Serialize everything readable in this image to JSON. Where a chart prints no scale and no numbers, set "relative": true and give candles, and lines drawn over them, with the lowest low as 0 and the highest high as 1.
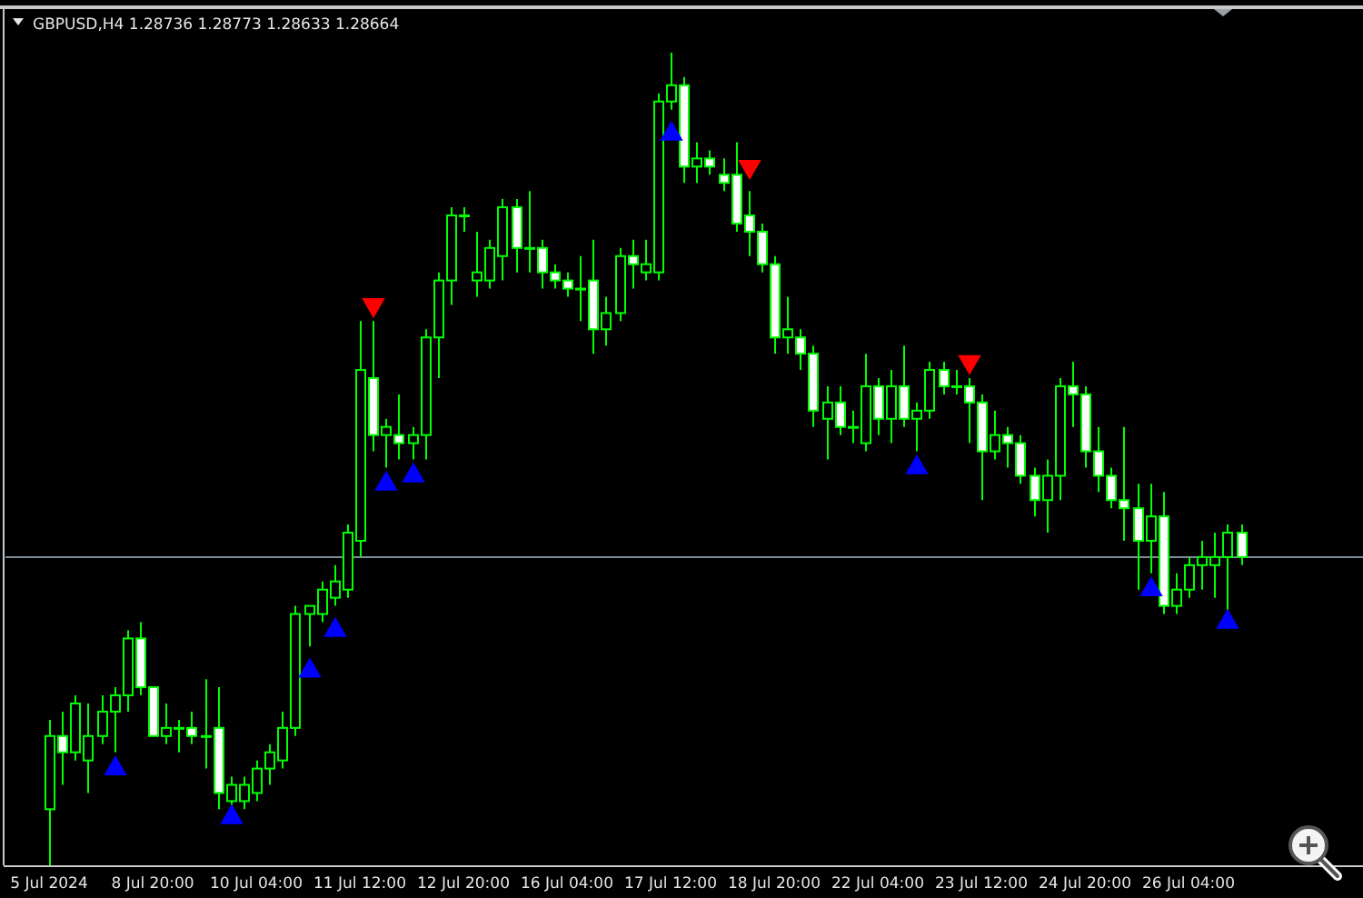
{
  "chart_data": {
    "type": "candlestick",
    "title": "GBPUSD,H4  1.28736 1.28773 1.28633 1.28664",
    "relative": true,
    "color": "#00ff00",
    "tick_labels": "x",
    "grid": false,
    "legend": false,
    "categories": [
      "5 Jul 2024",
      null,
      null,
      null,
      null,
      null,
      null,
      null,
      "8 Jul 20:00",
      null,
      null,
      null,
      null,
      null,
      null,
      null,
      "10 Jul 04:00",
      null,
      null,
      null,
      null,
      null,
      null,
      null,
      "11 Jul 12:00",
      null,
      null,
      null,
      null,
      null,
      null,
      null,
      "12 Jul 20:00",
      null,
      null,
      null,
      null,
      null,
      null,
      null,
      "16 Jul 04:00",
      null,
      null,
      null,
      null,
      null,
      null,
      null,
      "17 Jul 12:00",
      null,
      null,
      null,
      null,
      null,
      null,
      null,
      "18 Jul 20:00",
      null,
      null,
      null,
      null,
      null,
      null,
      null,
      "22 Jul 04:00",
      null,
      null,
      null,
      null,
      null,
      null,
      null,
      "23 Jul 12:00",
      null,
      null,
      null,
      null,
      null,
      null,
      null,
      "24 Jul 20:00",
      null,
      null,
      null,
      null,
      null,
      null,
      null,
      "26 Jul 04:00",
      null,
      null,
      null,
      null
    ],
    "ohlc": [
      [
        0.07,
        0.18,
        0,
        0.16
      ],
      [
        0.16,
        0.19,
        0.1,
        0.14
      ],
      [
        0.14,
        0.21,
        0.13,
        0.2
      ],
      [
        0.13,
        0.2,
        0.09,
        0.16
      ],
      [
        0.16,
        0.21,
        0.15,
        0.19
      ],
      [
        0.19,
        0.22,
        0.14,
        0.21
      ],
      [
        0.21,
        0.29,
        0.19,
        0.28
      ],
      [
        0.28,
        0.3,
        0.21,
        0.22
      ],
      [
        0.22,
        0.22,
        0.16,
        0.16
      ],
      [
        0.16,
        0.2,
        0.15,
        0.17
      ],
      [
        0.17,
        0.18,
        0.14,
        0.17
      ],
      [
        0.17,
        0.19,
        0.15,
        0.16
      ],
      [
        0.16,
        0.23,
        0.12,
        0.16
      ],
      [
        0.17,
        0.22,
        0.07,
        0.09
      ],
      [
        0.08,
        0.11,
        0.07,
        0.1
      ],
      [
        0.08,
        0.11,
        0.07,
        0.1
      ],
      [
        0.09,
        0.13,
        0.08,
        0.12
      ],
      [
        0.12,
        0.15,
        0.1,
        0.14
      ],
      [
        0.13,
        0.19,
        0.12,
        0.17
      ],
      [
        0.17,
        0.32,
        0.16,
        0.31
      ],
      [
        0.31,
        0.32,
        0.27,
        0.32
      ],
      [
        0.31,
        0.35,
        0.3,
        0.34
      ],
      [
        0.33,
        0.37,
        0.32,
        0.35
      ],
      [
        0.34,
        0.42,
        0.33,
        0.41
      ],
      [
        0.4,
        0.67,
        0.38,
        0.61
      ],
      [
        0.6,
        0.67,
        0.51,
        0.53
      ],
      [
        0.53,
        0.55,
        0.49,
        0.54
      ],
      [
        0.53,
        0.58,
        0.5,
        0.52
      ],
      [
        0.52,
        0.54,
        0.5,
        0.53
      ],
      [
        0.53,
        0.66,
        0.5,
        0.65
      ],
      [
        0.65,
        0.73,
        0.6,
        0.72
      ],
      [
        0.72,
        0.81,
        0.69,
        0.8
      ],
      [
        0.8,
        0.81,
        0.78,
        0.8
      ],
      [
        0.72,
        0.78,
        0.7,
        0.73
      ],
      [
        0.72,
        0.77,
        0.71,
        0.76
      ],
      [
        0.75,
        0.82,
        0.72,
        0.81
      ],
      [
        0.81,
        0.82,
        0.73,
        0.76
      ],
      [
        0.76,
        0.83,
        0.73,
        0.76
      ],
      [
        0.76,
        0.77,
        0.71,
        0.73
      ],
      [
        0.73,
        0.74,
        0.71,
        0.72
      ],
      [
        0.72,
        0.73,
        0.7,
        0.71
      ],
      [
        0.71,
        0.75,
        0.67,
        0.71
      ],
      [
        0.72,
        0.77,
        0.63,
        0.66
      ],
      [
        0.66,
        0.7,
        0.64,
        0.68
      ],
      [
        0.68,
        0.76,
        0.67,
        0.75
      ],
      [
        0.75,
        0.77,
        0.71,
        0.74
      ],
      [
        0.73,
        0.77,
        0.72,
        0.74
      ],
      [
        0.73,
        0.95,
        0.72,
        0.94
      ],
      [
        0.94,
        1,
        0.93,
        0.96
      ],
      [
        0.96,
        0.97,
        0.84,
        0.86
      ],
      [
        0.86,
        0.89,
        0.84,
        0.87
      ],
      [
        0.87,
        0.88,
        0.85,
        0.86
      ],
      [
        0.85,
        0.87,
        0.83,
        0.84
      ],
      [
        0.85,
        0.89,
        0.78,
        0.79
      ],
      [
        0.8,
        0.83,
        0.75,
        0.78
      ],
      [
        0.78,
        0.79,
        0.73,
        0.74
      ],
      [
        0.74,
        0.75,
        0.63,
        0.65
      ],
      [
        0.65,
        0.7,
        0.63,
        0.66
      ],
      [
        0.65,
        0.66,
        0.61,
        0.63
      ],
      [
        0.63,
        0.64,
        0.54,
        0.56
      ],
      [
        0.55,
        0.59,
        0.5,
        0.57
      ],
      [
        0.57,
        0.59,
        0.53,
        0.54
      ],
      [
        0.54,
        0.56,
        0.52,
        0.54
      ],
      [
        0.52,
        0.63,
        0.51,
        0.59
      ],
      [
        0.59,
        0.6,
        0.53,
        0.55
      ],
      [
        0.55,
        0.61,
        0.52,
        0.59
      ],
      [
        0.59,
        0.64,
        0.54,
        0.55
      ],
      [
        0.55,
        0.57,
        0.51,
        0.56
      ],
      [
        0.56,
        0.62,
        0.55,
        0.61
      ],
      [
        0.61,
        0.62,
        0.58,
        0.59
      ],
      [
        0.59,
        0.61,
        0.58,
        0.59
      ],
      [
        0.59,
        0.6,
        0.52,
        0.57
      ],
      [
        0.57,
        0.58,
        0.45,
        0.51
      ],
      [
        0.51,
        0.56,
        0.5,
        0.53
      ],
      [
        0.53,
        0.54,
        0.49,
        0.52
      ],
      [
        0.52,
        0.53,
        0.47,
        0.48
      ],
      [
        0.48,
        0.49,
        0.43,
        0.45
      ],
      [
        0.45,
        0.5,
        0.41,
        0.48
      ],
      [
        0.48,
        0.6,
        0.45,
        0.59
      ],
      [
        0.59,
        0.62,
        0.54,
        0.58
      ],
      [
        0.58,
        0.59,
        0.49,
        0.51
      ],
      [
        0.51,
        0.54,
        0.46,
        0.48
      ],
      [
        0.48,
        0.49,
        0.44,
        0.45
      ],
      [
        0.45,
        0.54,
        0.4,
        0.44
      ],
      [
        0.44,
        0.47,
        0.34,
        0.4
      ],
      [
        0.4,
        0.47,
        0.36,
        0.43
      ],
      [
        0.43,
        0.46,
        0.31,
        0.32
      ],
      [
        0.32,
        0.36,
        0.31,
        0.34
      ],
      [
        0.34,
        0.38,
        0.33,
        0.37
      ],
      [
        0.37,
        0.4,
        0.34,
        0.38
      ],
      [
        0.37,
        0.41,
        0.33,
        0.38
      ],
      [
        0.38,
        0.42,
        0.31,
        0.41
      ],
      [
        0.41,
        0.42,
        0.37,
        0.38
      ]
    ],
    "series": [
      {
        "type": "scatter",
        "marker": "triangle",
        "color": "#0000ff",
        "values": [
          null,
          null,
          null,
          null,
          null,
          0.12,
          null,
          null,
          null,
          null,
          null,
          null,
          null,
          null,
          0.06,
          null,
          null,
          null,
          null,
          null,
          0.24,
          null,
          0.29,
          null,
          null,
          null,
          0.47,
          null,
          0.48,
          null,
          null,
          null,
          null,
          null,
          null,
          null,
          null,
          null,
          null,
          null,
          null,
          null,
          null,
          null,
          null,
          null,
          null,
          null,
          0.9,
          null,
          null,
          null,
          null,
          null,
          null,
          null,
          null,
          null,
          null,
          null,
          null,
          null,
          null,
          null,
          null,
          null,
          null,
          0.49,
          null,
          null,
          null,
          null,
          null,
          null,
          null,
          null,
          null,
          null,
          null,
          null,
          null,
          null,
          null,
          null,
          null,
          0.34,
          null,
          null,
          null,
          null,
          null,
          0.3,
          null
        ]
      },
      {
        "type": "scatter",
        "marker": "triangle",
        "color": "#ff0000",
        "values": [
          null,
          null,
          null,
          null,
          null,
          null,
          null,
          null,
          null,
          null,
          null,
          null,
          null,
          null,
          null,
          null,
          null,
          null,
          null,
          null,
          null,
          null,
          null,
          null,
          null,
          0.69,
          null,
          null,
          null,
          null,
          null,
          null,
          null,
          null,
          null,
          null,
          null,
          null,
          null,
          null,
          null,
          null,
          null,
          null,
          null,
          null,
          null,
          null,
          null,
          null,
          null,
          null,
          null,
          null,
          0.86,
          null,
          null,
          null,
          null,
          null,
          null,
          null,
          null,
          null,
          null,
          null,
          null,
          null,
          null,
          null,
          null,
          0.62,
          null,
          null,
          null,
          null,
          null,
          null,
          null,
          null,
          null,
          null,
          null,
          null,
          null,
          null,
          null,
          null,
          null,
          null,
          null,
          null,
          null
        ]
      }
    ],
    "ref_lines": [
      {
        "axis": "y",
        "value": 0.38,
        "color": "#7f8c9a"
      }
    ]
  }
}
